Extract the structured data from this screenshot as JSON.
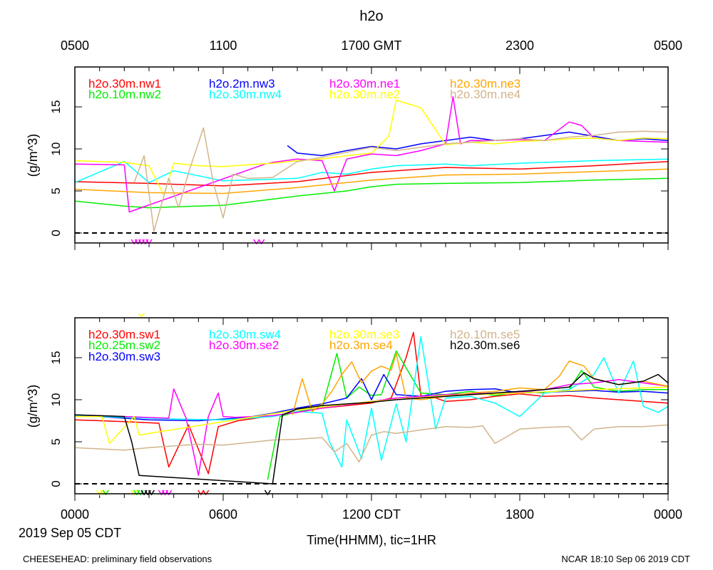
{
  "chart_data": [
    {
      "type": "line",
      "title": "h2o",
      "ylabel": "(g/m^3)",
      "ylim": [
        -1.2,
        19.7
      ],
      "xlim_hours": [
        0,
        24
      ],
      "yticks": [
        "0",
        "5",
        "10",
        "15"
      ],
      "top_axis_ticks": [
        "0500",
        "1100",
        "1700 GMT",
        "2300",
        "0500"
      ],
      "zero_line": "dashed",
      "legend_layout": "columns top-left to top-right",
      "series": [
        {
          "name": "h2o.30m.nw1",
          "color": "#ff0000",
          "x": [
            0,
            3,
            6,
            9,
            12,
            15,
            18,
            21,
            24
          ],
          "values": [
            6.1,
            5.9,
            5.6,
            6.1,
            7.2,
            7.8,
            7.6,
            8.0,
            8.5
          ]
        },
        {
          "name": "h2o.10m.nw2",
          "color": "#00ee00",
          "x": [
            0,
            1,
            2,
            3,
            4,
            6,
            9,
            11,
            12,
            13,
            15,
            18,
            21,
            24
          ],
          "values": [
            3.8,
            3.5,
            3.2,
            3.0,
            3.1,
            3.3,
            4.4,
            5.0,
            5.5,
            5.8,
            5.9,
            6.0,
            6.3,
            6.5
          ]
        },
        {
          "name": "h2o.2m.nw3",
          "color": "#0000ff",
          "x": [
            8.6,
            9,
            10,
            11,
            12,
            13,
            14,
            15,
            16,
            17,
            18,
            19,
            20,
            21,
            22,
            23,
            24
          ],
          "values": [
            10.4,
            9.5,
            9.2,
            9.8,
            10.3,
            10.0,
            10.6,
            11.0,
            11.4,
            11.0,
            11.2,
            11.6,
            12.0,
            11.5,
            11.0,
            11.2,
            11.0
          ]
        },
        {
          "name": "h2o.30m.nw4",
          "color": "#00ffff",
          "x": [
            0,
            2,
            3,
            4,
            6,
            9,
            10,
            11,
            12,
            13,
            15,
            16,
            18,
            21,
            24
          ],
          "values": [
            6.0,
            8.5,
            6.0,
            7.4,
            6.2,
            6.5,
            7.2,
            7.0,
            7.6,
            8.0,
            8.2,
            8.0,
            8.3,
            8.6,
            8.8
          ]
        },
        {
          "name": "h2o.30m.ne1",
          "color": "#ff00ff",
          "x": [
            0,
            2,
            2.2,
            7.7,
            8,
            9,
            10,
            10.5,
            11,
            12,
            13,
            14,
            15,
            15.3,
            15.6,
            16,
            17,
            18,
            19,
            20,
            20.5,
            21,
            22,
            24
          ],
          "values": [
            8.2,
            8.1,
            2.5,
            8.2,
            8.4,
            8.8,
            8.6,
            5.0,
            8.8,
            9.4,
            9.2,
            9.8,
            10.6,
            16.2,
            10.6,
            11.0,
            11.0,
            11.1,
            11.0,
            13.2,
            12.8,
            11.3,
            11.0,
            10.8
          ]
        },
        {
          "name": "h2o.30m.ne2",
          "color": "#ffff00",
          "x": [
            0,
            2,
            3,
            3.6,
            4,
            5,
            6,
            7,
            8,
            9,
            10,
            11,
            12,
            12.7,
            13,
            14,
            15,
            16,
            17,
            18,
            19,
            20,
            21,
            22,
            23,
            24
          ],
          "values": [
            8.6,
            8.4,
            8.0,
            4.5,
            8.3,
            8.0,
            7.9,
            8.1,
            8.3,
            8.6,
            8.8,
            9.2,
            9.5,
            11.5,
            15.8,
            14.9,
            10.5,
            10.8,
            10.6,
            10.9,
            11.0,
            11.2,
            11.3,
            11.0,
            11.3,
            11.2
          ]
        },
        {
          "name": "h2o.30m.ne3",
          "color": "#ffa500",
          "x": [
            0,
            3,
            6,
            9,
            12,
            15,
            18,
            21,
            24
          ],
          "values": [
            5.2,
            4.8,
            4.7,
            5.4,
            6.3,
            6.9,
            7.0,
            7.3,
            7.6
          ]
        },
        {
          "name": "h2o.30m.ne4",
          "color": "#d2b48c",
          "x": [
            2.4,
            2.8,
            3.2,
            3.8,
            4.2,
            4.6,
            5.2,
            5.6,
            6,
            6.4,
            7,
            8,
            9,
            10,
            11,
            12,
            13,
            14,
            15,
            16,
            17,
            18,
            19,
            20,
            21,
            22,
            23,
            24
          ],
          "values": [
            6.0,
            9.2,
            0.2,
            6.5,
            3.0,
            7.2,
            12.5,
            6.0,
            1.8,
            7.0,
            6.5,
            6.6,
            8.5,
            9.0,
            9.6,
            10.2,
            9.8,
            10.2,
            10.6,
            10.8,
            11.0,
            11.2,
            11.0,
            11.4,
            11.6,
            12.0,
            12.1,
            12.0
          ]
        }
      ],
      "flags": {
        "color": "#ff00ff",
        "x": [
          2.4,
          2.55,
          2.7,
          2.85,
          3.0,
          7.35,
          7.55
        ]
      }
    },
    {
      "type": "line",
      "ylabel": "(g/m^3)",
      "ylim": [
        -1.2,
        19.7
      ],
      "xlim_hours": [
        0,
        24
      ],
      "yticks": [
        "0",
        "5",
        "10",
        "15"
      ],
      "xticks": [
        "0000",
        "0600",
        "1200 CDT",
        "1800",
        "0000"
      ],
      "xlabel": "Time(HHMM), tic=1HR",
      "date_label": "2019 Sep 05 CDT",
      "zero_line": "dashed",
      "series": [
        {
          "name": "h2o.30m.sw1",
          "color": "#ff0000",
          "x": [
            0,
            2,
            3.4,
            3.8,
            4.6,
            5.4,
            5.8,
            6.6,
            8,
            9,
            10,
            11,
            12,
            12.8,
            13.4,
            13.7,
            14,
            14.6,
            15,
            16,
            17,
            18,
            19,
            20,
            21,
            22,
            23,
            24
          ],
          "values": [
            7.6,
            7.4,
            7.2,
            2.0,
            7.0,
            1.2,
            6.8,
            7.5,
            8.1,
            8.5,
            9.0,
            9.3,
            9.6,
            10.2,
            15.0,
            18.0,
            10.5,
            10.2,
            9.8,
            10.0,
            10.4,
            10.7,
            10.4,
            10.5,
            10.2,
            10.0,
            9.8,
            9.6
          ]
        },
        {
          "name": "h2o.25m.sw2",
          "color": "#00ee00",
          "x": [
            7.8,
            8.3,
            9,
            10,
            10.6,
            11,
            11.5,
            12,
            12.4,
            13,
            14,
            15,
            16,
            17,
            18,
            19,
            20,
            20.5,
            21,
            22,
            23,
            24
          ],
          "values": [
            0.5,
            8.0,
            8.6,
            9.0,
            15.5,
            10.2,
            11.5,
            10.5,
            10.6,
            15.8,
            10.8,
            10.6,
            11.0,
            10.5,
            11.0,
            10.8,
            11.2,
            13.5,
            11.5,
            11.0,
            11.2,
            11.2
          ]
        },
        {
          "name": "h2o.30m.sw3",
          "color": "#0000ff",
          "x": [
            0,
            1,
            3,
            5,
            7,
            8,
            9,
            10,
            11,
            11.6,
            12,
            12.5,
            13,
            14,
            15,
            16,
            17,
            18,
            19,
            20,
            21,
            22,
            23,
            24
          ],
          "values": [
            8.2,
            8.0,
            7.6,
            7.5,
            7.9,
            8.4,
            9.0,
            9.5,
            10.2,
            12.5,
            10.0,
            13.0,
            10.6,
            10.4,
            11.0,
            11.2,
            11.3,
            10.8,
            10.9,
            11.0,
            11.1,
            10.9,
            11.0,
            10.8
          ]
        },
        {
          "name": "h2o.30m.sw4",
          "color": "#00ffff",
          "x": [
            0,
            2,
            4,
            6,
            8,
            9,
            10,
            10.3,
            10.8,
            11,
            11.6,
            12,
            12.4,
            13,
            13.4,
            14,
            14.3,
            14.6,
            15,
            16,
            17,
            18,
            19,
            20,
            21,
            21.4,
            22,
            22.6,
            23,
            23.6,
            24
          ],
          "values": [
            8.1,
            7.9,
            7.7,
            7.6,
            8.0,
            8.6,
            8.4,
            5.0,
            2.0,
            7.6,
            3.0,
            9.0,
            2.8,
            9.5,
            5.0,
            17.5,
            12.0,
            6.5,
            10.2,
            10.4,
            9.6,
            8.0,
            10.8,
            11.2,
            13.0,
            15.0,
            10.8,
            14.6,
            9.2,
            8.5,
            9.2
          ]
        },
        {
          "name": "h2o.30m.se2",
          "color": "#ff00ff",
          "x": [
            0,
            2,
            3.8,
            4,
            4.5,
            5,
            5.4,
            5.8,
            6,
            6.5,
            8,
            9,
            10,
            11,
            12,
            13,
            14,
            15,
            16,
            17,
            18,
            19,
            20,
            21,
            22,
            23,
            24
          ],
          "values": [
            8.2,
            8.0,
            7.8,
            11.3,
            7.8,
            1.0,
            8.0,
            10.8,
            8.0,
            7.9,
            8.1,
            8.5,
            9.0,
            9.4,
            9.8,
            10.2,
            10.4,
            10.6,
            10.7,
            10.8,
            10.9,
            11.2,
            11.8,
            12.0,
            12.4,
            12.0,
            11.6
          ]
        },
        {
          "name": "h2o.30m.se3",
          "color": "#ffff00",
          "x": [
            0,
            1.1,
            1.4,
            2.4,
            2.6,
            9,
            12,
            15,
            18,
            21,
            24
          ],
          "values": [
            8.0,
            8.0,
            4.8,
            8.0,
            5.8,
            8.8,
            9.8,
            10.5,
            10.8,
            11.2,
            11.5
          ]
        },
        {
          "name": "h2o.3m.se4",
          "color": "#ffa500",
          "x": [
            8.8,
            9.2,
            9.6,
            10,
            10.4,
            10.8,
            11.2,
            11.6,
            12,
            12.4,
            12.8,
            13,
            13.4,
            14,
            15,
            16,
            17,
            18,
            19,
            19.6,
            20,
            20.6,
            21,
            22,
            23,
            24
          ],
          "values": [
            8.2,
            12.5,
            8.6,
            9.5,
            11.0,
            13.0,
            14.5,
            12.0,
            13.4,
            14.0,
            13.5,
            15.5,
            10.2,
            10.0,
            10.4,
            10.8,
            11.0,
            11.4,
            11.2,
            12.8,
            14.6,
            14.0,
            12.5,
            11.8,
            12.2,
            11.6
          ]
        },
        {
          "name": "h2o.10m.se5",
          "color": "#d2b48c",
          "x": [
            0,
            2,
            3,
            4,
            5,
            6,
            7,
            8,
            9,
            10,
            10.5,
            11,
            11.5,
            12,
            12.5,
            13,
            14,
            15,
            16,
            16.5,
            17,
            18,
            19,
            20,
            20.5,
            21,
            22,
            23,
            24
          ],
          "values": [
            4.3,
            4.0,
            4.3,
            4.5,
            4.7,
            4.6,
            4.9,
            5.2,
            5.3,
            5.5,
            3.8,
            4.8,
            2.6,
            5.8,
            6.2,
            6.0,
            6.4,
            6.8,
            6.7,
            6.9,
            4.8,
            6.5,
            6.7,
            6.8,
            5.2,
            6.5,
            6.8,
            6.8,
            7.0
          ]
        },
        {
          "name": "h2o.30m.se6",
          "color": "#000000",
          "x": [
            0,
            1,
            2,
            2.3,
            2.6,
            8,
            8.4,
            9,
            10,
            11,
            12,
            13,
            14,
            15,
            16,
            17,
            18,
            19,
            20,
            20.6,
            21,
            22,
            23,
            23.6,
            24
          ],
          "values": [
            8.2,
            8.1,
            8.0,
            5.0,
            1.0,
            0.0,
            8.2,
            8.9,
            9.3,
            9.5,
            9.7,
            10.0,
            10.2,
            10.4,
            10.6,
            10.8,
            11.0,
            11.2,
            11.5,
            13.2,
            12.5,
            11.8,
            12.2,
            13.0,
            12.0
          ]
        }
      ],
      "flags": [
        {
          "color": "#ffff00",
          "x": [
            1.0,
            1.15,
            2.4
          ]
        },
        {
          "color": "#00ee00",
          "x": [
            1.25,
            2.5,
            2.65
          ]
        },
        {
          "color": "#000000",
          "x": [
            2.8,
            2.95,
            3.1,
            7.8
          ]
        },
        {
          "color": "#ff00ff",
          "x": [
            3.5,
            3.65,
            3.8
          ]
        },
        {
          "color": "#ff0000",
          "x": [
            5.1,
            5.3
          ]
        },
        {
          "color": "#ffff00",
          "x": [
            2.7
          ],
          "above_top": true
        }
      ]
    }
  ],
  "footer": {
    "left": "CHEESEHEAD: preliminary field observations",
    "right": "NCAR 18:10 Sep 06 2019 CDT"
  }
}
